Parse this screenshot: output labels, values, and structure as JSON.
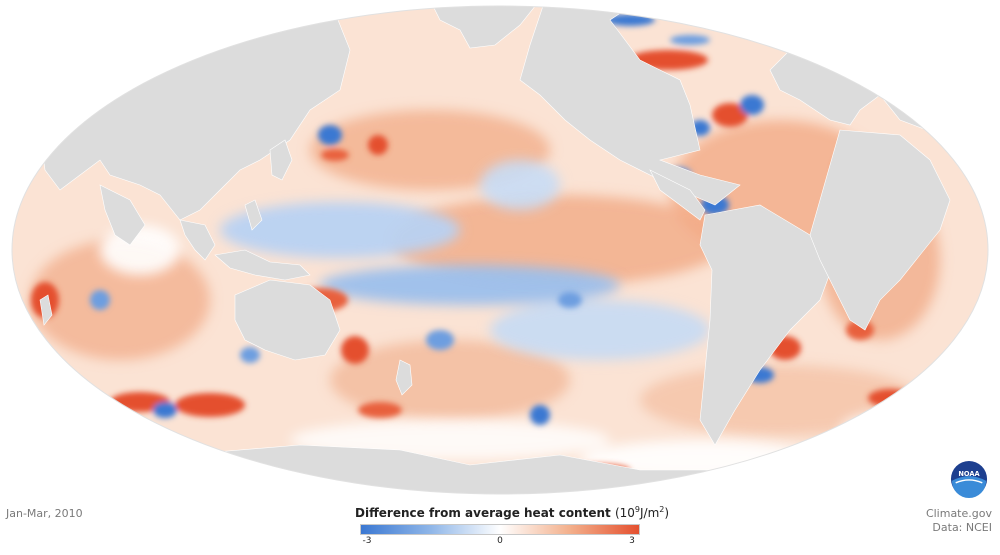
{
  "map": {
    "projection": "Mollweide-like world map",
    "colors": {
      "land": "#dcdcdc",
      "negative_strong": "#3b78d2",
      "negative_weak": "#a8c8ef",
      "neutral": "#ffffff",
      "positive_weak": "#f5c3a4",
      "positive": "#ef9a74",
      "positive_strong": "#e4502f"
    }
  },
  "period_label": "Jan-Mar, 2010",
  "legend": {
    "title": "Difference from average heat content",
    "unit_prefix": "(10",
    "unit_exp": "9",
    "unit_mid": "J/m",
    "unit_exp2": "2",
    "unit_suffix": ")",
    "min_label": "-3",
    "mid_label": "0",
    "max_label": "3",
    "scale_min": -3,
    "scale_max": 3
  },
  "credits": {
    "line1": "Climate.gov",
    "line2": "Data: NCEI"
  },
  "logo": {
    "text": "NOAA",
    "colors": {
      "dark": "#1d3f8f",
      "light": "#3a8bd8"
    }
  }
}
